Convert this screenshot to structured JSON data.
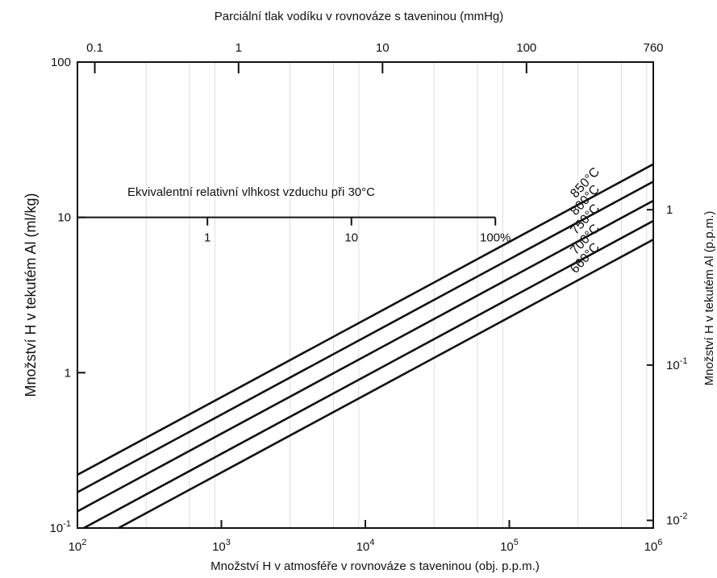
{
  "chart_data": {
    "type": "line",
    "x_axis_scale": "log",
    "y_axis_scale": "log",
    "xlim": [
      100,
      1000000
    ],
    "ylim": [
      0.1,
      100
    ],
    "xlabel": "Množství H v atmosféře v rovnováze s taveninou (obj. p.p.m.)",
    "ylabel": "Množství H v tekutém Al (ml/kg)",
    "top_xlabel": "Parciální tlak vodíku v rovnováze s taveninou (mmHg)",
    "right_ylabel": "Množství H v tekutém Al (p.p.m.)",
    "inner_axis_label": "Ekvivalentní relativní vlhkost vzduchu při 30°C",
    "x_ticks": [
      {
        "base": "10",
        "exp": "2",
        "value": 100
      },
      {
        "base": "10",
        "exp": "3",
        "value": 1000
      },
      {
        "base": "10",
        "exp": "4",
        "value": 10000
      },
      {
        "base": "10",
        "exp": "5",
        "value": 100000
      },
      {
        "base": "10",
        "exp": "6",
        "value": 1000000
      }
    ],
    "y_ticks": [
      {
        "text": "100",
        "value": 100
      },
      {
        "text": "10",
        "value": 10
      },
      {
        "text": "1",
        "value": 1
      },
      {
        "base": "10",
        "exp": "-1",
        "value": 0.1
      }
    ],
    "top_ticks": [
      {
        "text": "0.1",
        "x_value": 132
      },
      {
        "text": "1",
        "x_value": 1316
      },
      {
        "text": "10",
        "x_value": 13158
      },
      {
        "text": "100",
        "x_value": 131579
      },
      {
        "text": "760",
        "x_value": 1000000
      }
    ],
    "right_ticks": [
      {
        "text": "1",
        "y_value": 11.2
      },
      {
        "base": "10",
        "exp": "-1",
        "y_value": 1.12
      },
      {
        "base": "10",
        "exp": "-2",
        "y_value": 0.112
      }
    ],
    "inner_axis": {
      "y_value": 10,
      "x_start": 100,
      "x_end": 80000,
      "ticks": [
        {
          "text": "1",
          "x_value": 800
        },
        {
          "text": "10",
          "x_value": 8000
        },
        {
          "text": "100%",
          "x_value": 80000
        }
      ]
    },
    "series": [
      {
        "name": "850°C",
        "x": [
          100,
          1000000
        ],
        "y": [
          0.22,
          22
        ]
      },
      {
        "name": "800°C",
        "x": [
          100,
          1000000
        ],
        "y": [
          0.17,
          17
        ]
      },
      {
        "name": "750°C",
        "x": [
          100,
          1000000
        ],
        "y": [
          0.128,
          12.8
        ]
      },
      {
        "name": "700°C",
        "x": [
          100,
          1000000
        ],
        "y": [
          0.095,
          9.5
        ]
      },
      {
        "name": "660°C",
        "x": [
          100,
          1000000
        ],
        "y": [
          0.072,
          7.2
        ]
      }
    ],
    "grid": false,
    "legend": "inline labels near the upper-right ends of the lines"
  }
}
